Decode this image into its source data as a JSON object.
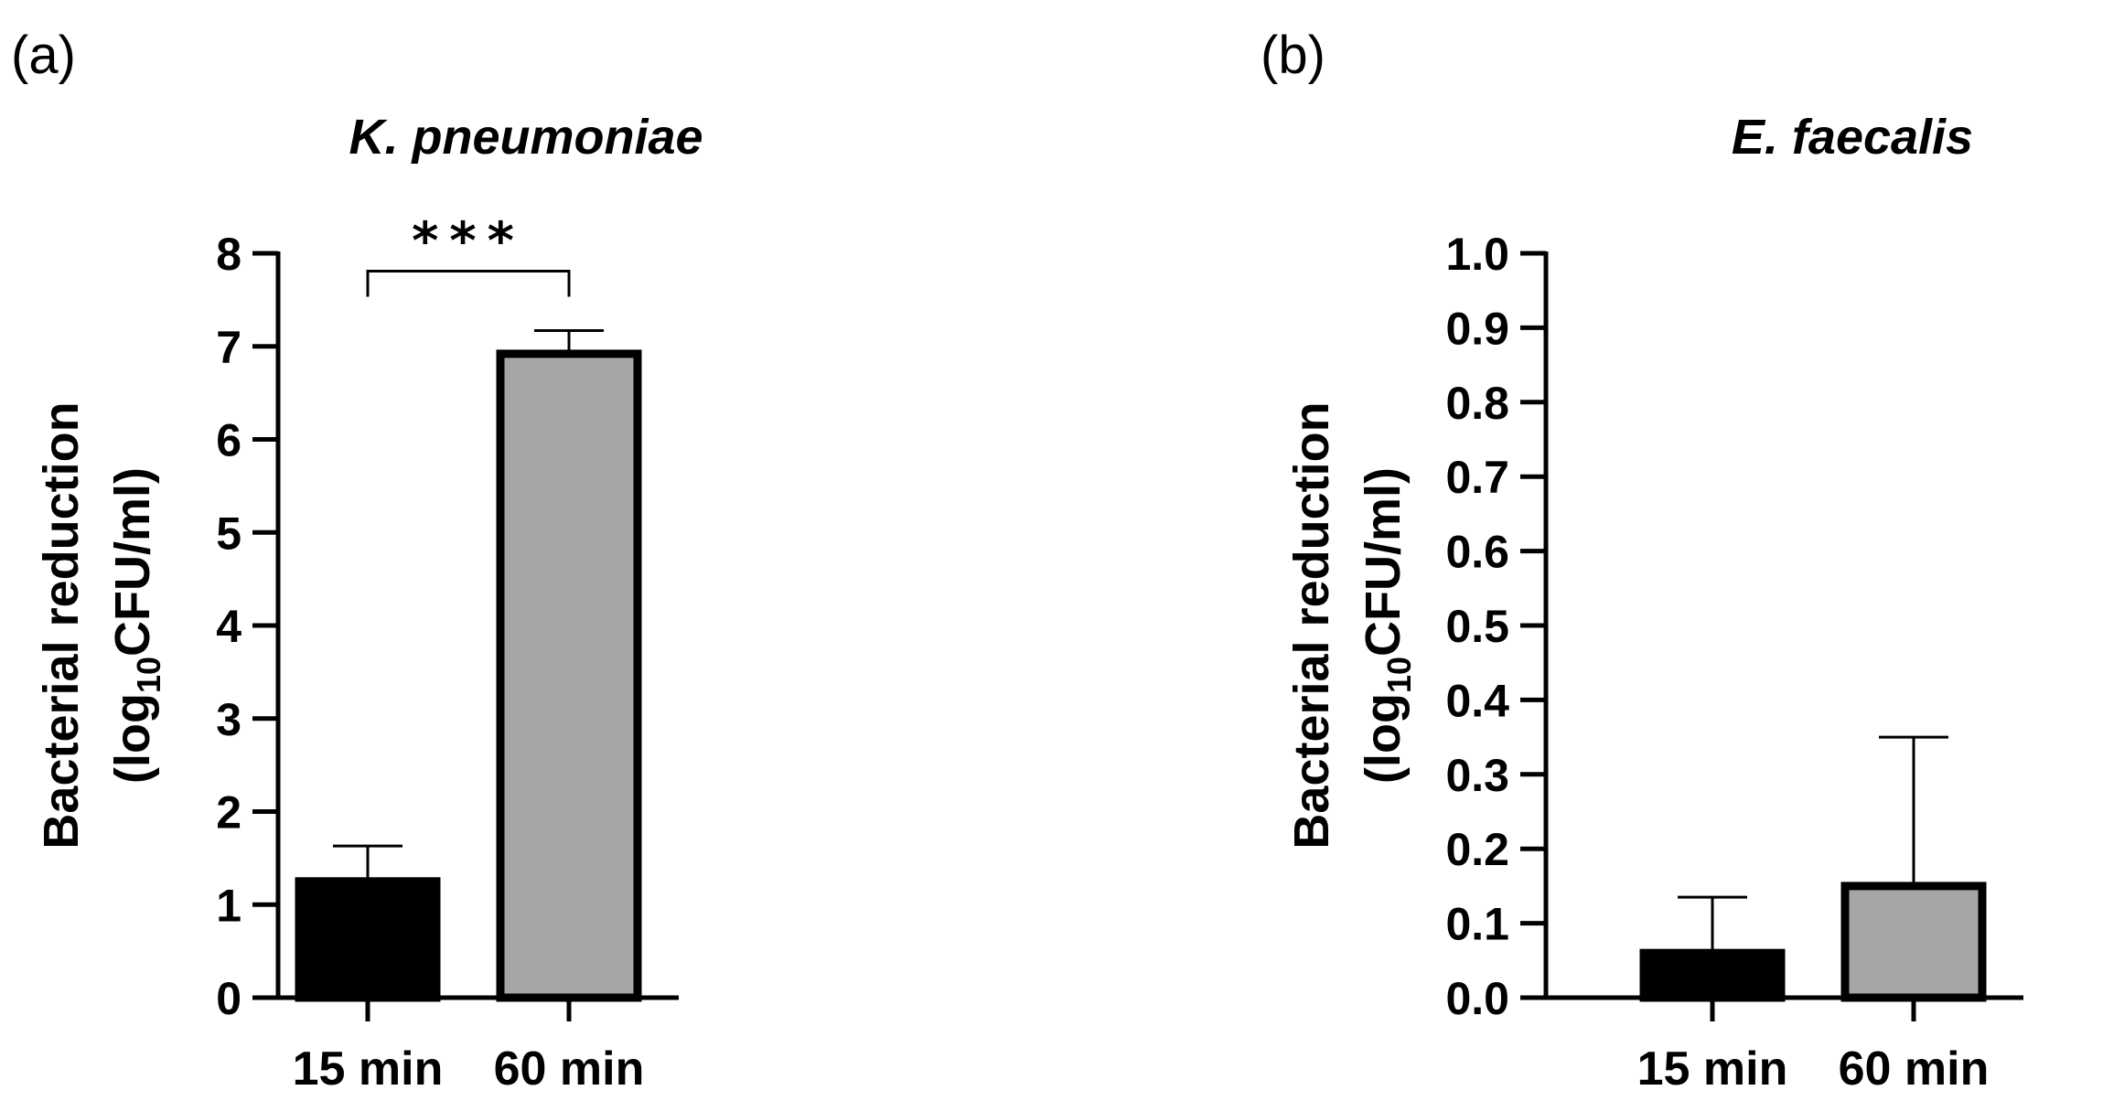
{
  "chart_data": [
    {
      "type": "bar",
      "panel": "(a)",
      "title": "K. pneumoniae",
      "ylabel_line1": "Bacterial reduction",
      "ylabel_line2_prefix": "(log",
      "ylabel_line2_sub": "10",
      "ylabel_line2_suffix": "CFU/ml)",
      "categories": [
        "15 min",
        "60 min"
      ],
      "values": [
        1.25,
        6.92
      ],
      "errors": [
        0.38,
        0.25
      ],
      "bar_colors": [
        "#000000",
        "#a6a6a6"
      ],
      "ylim": [
        0,
        8
      ],
      "yticks": [
        "0",
        "1",
        "2",
        "3",
        "4",
        "5",
        "6",
        "7",
        "8"
      ],
      "significance": {
        "from": 0,
        "to": 1,
        "label": "***"
      }
    },
    {
      "type": "bar",
      "panel": "(b)",
      "title": "E. faecalis",
      "ylabel_line1": "Bacterial reduction",
      "ylabel_line2_prefix": "(log",
      "ylabel_line2_sub": "10",
      "ylabel_line2_suffix": "CFU/ml)",
      "categories": [
        "15 min",
        "60 min"
      ],
      "values": [
        0.06,
        0.15
      ],
      "errors": [
        0.075,
        0.2
      ],
      "bar_colors": [
        "#000000",
        "#a6a6a6"
      ],
      "ylim": [
        0,
        1.0
      ],
      "yticks": [
        "0.0",
        "0.1",
        "0.2",
        "0.3",
        "0.4",
        "0.5",
        "0.6",
        "0.7",
        "0.8",
        "0.9",
        "1.0"
      ]
    }
  ]
}
